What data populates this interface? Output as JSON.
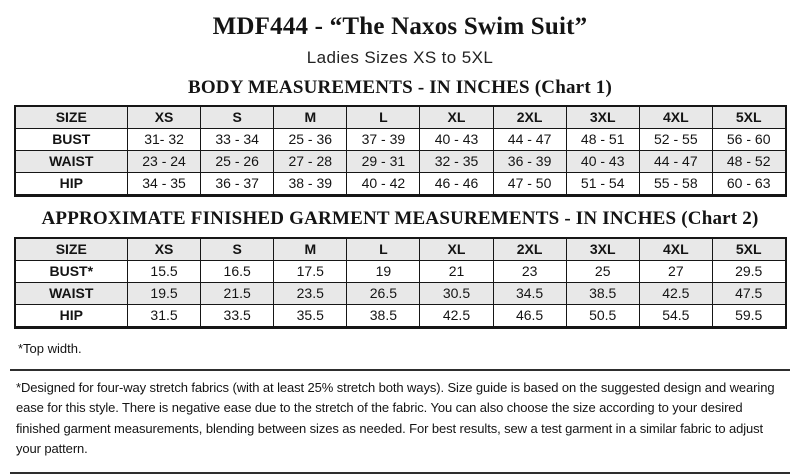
{
  "header": {
    "title": "MDF444 - “The Naxos Swim Suit”",
    "subtitle": "Ladies Sizes XS to 5XL"
  },
  "chart1": {
    "heading": "BODY MEASUREMENTS - IN INCHES (Chart 1)",
    "table": {
      "header": [
        "SIZE",
        "XS",
        "S",
        "M",
        "L",
        "XL",
        "2XL",
        "3XL",
        "4XL",
        "5XL"
      ],
      "rows": [
        {
          "label": "BUST",
          "values": [
            "31- 32",
            "33 - 34",
            "25 - 36",
            "37 - 39",
            "40 - 43",
            "44 - 47",
            "48 - 51",
            "52 - 55",
            "56 - 60"
          ]
        },
        {
          "label": "WAIST",
          "values": [
            "23 - 24",
            "25 - 26",
            "27 - 28",
            "29 - 31",
            "32 - 35",
            "36 - 39",
            "40 - 43",
            "44 - 47",
            "48 - 52"
          ]
        },
        {
          "label": "HIP",
          "values": [
            "34 - 35",
            "36 - 37",
            "38 - 39",
            "40 - 42",
            "46 - 46",
            "47 - 50",
            "51 - 54",
            "55 - 58",
            "60 - 63"
          ]
        }
      ]
    }
  },
  "chart2": {
    "heading": "APPROXIMATE FINISHED GARMENT MEASUREMENTS - IN INCHES (Chart 2)",
    "table": {
      "header": [
        "SIZE",
        "XS",
        "S",
        "M",
        "L",
        "XL",
        "2XL",
        "3XL",
        "4XL",
        "5XL"
      ],
      "rows": [
        {
          "label": "BUST*",
          "values": [
            "15.5",
            "16.5",
            "17.5",
            "19",
            "21",
            "23",
            "25",
            "27",
            "29.5"
          ]
        },
        {
          "label": "WAIST",
          "values": [
            "19.5",
            "21.5",
            "23.5",
            "26.5",
            "30.5",
            "34.5",
            "38.5",
            "42.5",
            "47.5"
          ]
        },
        {
          "label": "HIP",
          "values": [
            "31.5",
            "33.5",
            "35.5",
            "38.5",
            "42.5",
            "46.5",
            "50.5",
            "54.5",
            "59.5"
          ]
        }
      ]
    }
  },
  "notes": {
    "top_width": "*Top width.",
    "disclaimer": "*Designed for four-way stretch fabrics (with at least 25% stretch both ways). Size guide is based on the suggested design and wearing ease for this style. There is negative ease due to the stretch of the fabric. You can also choose the size according to your desired finished garment measurements, blending between sizes as needed. For best results, sew a test garment in a similar fabric to adjust your pattern."
  },
  "colors": {
    "row_shade": "#e8e8e8",
    "border": "#161616",
    "text": "#141414"
  }
}
